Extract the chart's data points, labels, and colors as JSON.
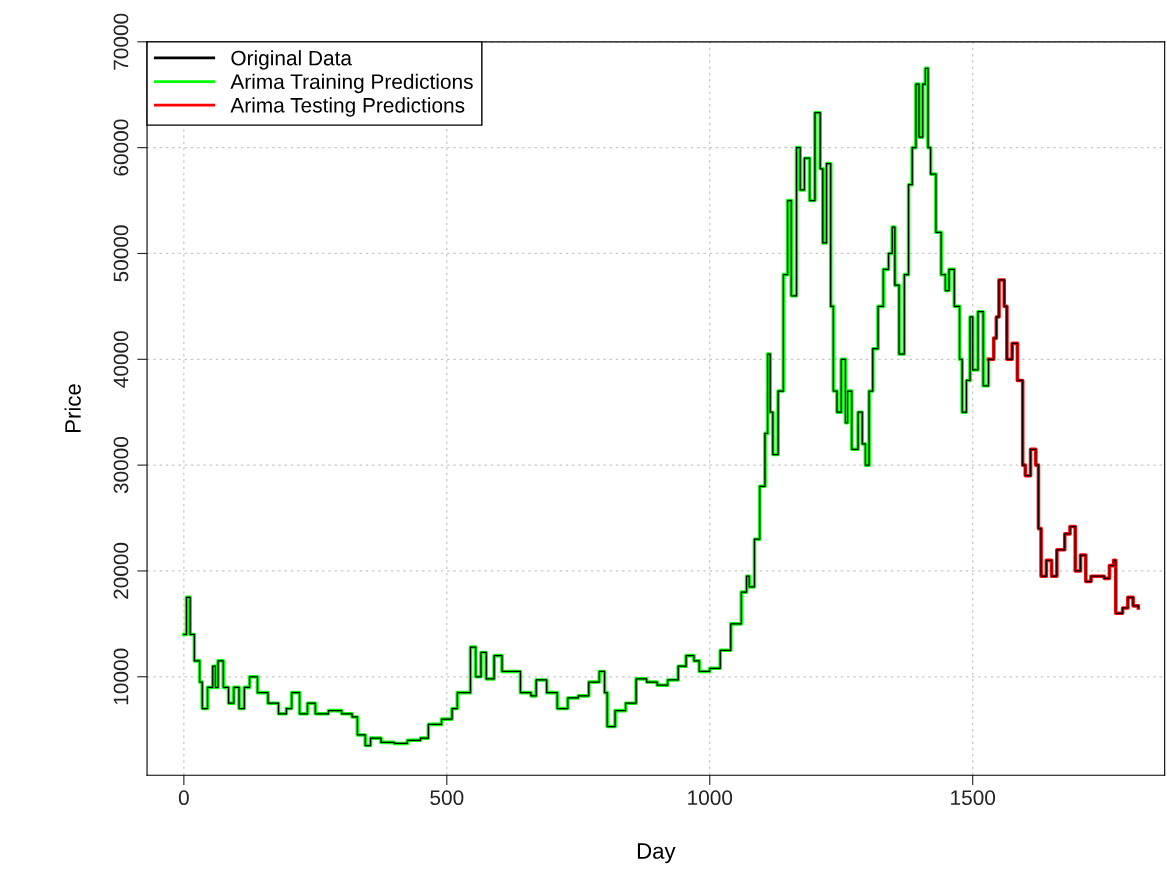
{
  "chart_data": {
    "type": "step",
    "xlabel": "Day",
    "ylabel": "Price",
    "xlim": [
      -70,
      1865
    ],
    "ylim": [
      700,
      70000
    ],
    "xticks": [
      0,
      500,
      1000,
      1500
    ],
    "yticks": [
      10000,
      20000,
      30000,
      40000,
      50000,
      60000,
      70000
    ],
    "grid": true,
    "legend": "top left",
    "line_style": "solid",
    "marker": "none",
    "series": [
      {
        "name": "Arima Training Predictions",
        "color": "#00ff00",
        "x": [
          0,
          5,
          12,
          20,
          30,
          35,
          45,
          55,
          60,
          65,
          75,
          85,
          95,
          105,
          115,
          125,
          140,
          160,
          180,
          195,
          205,
          220,
          235,
          250,
          275,
          300,
          320,
          330,
          345,
          355,
          375,
          400,
          425,
          450,
          465,
          490,
          510,
          520,
          535,
          545,
          555,
          565,
          575,
          590,
          605,
          625,
          640,
          660,
          670,
          690,
          710,
          730,
          750,
          770,
          790,
          800,
          805,
          820,
          840,
          860,
          880,
          900,
          920,
          940,
          955,
          970,
          980,
          1000,
          1010,
          1020,
          1040,
          1060,
          1070,
          1075,
          1085,
          1095,
          1105,
          1110,
          1115,
          1120,
          1130,
          1140,
          1148,
          1155,
          1165,
          1172,
          1180,
          1190,
          1200,
          1210,
          1215,
          1222,
          1230,
          1235,
          1242,
          1250,
          1258,
          1262,
          1270,
          1282,
          1290,
          1296,
          1303,
          1310,
          1320,
          1330,
          1340,
          1347,
          1352,
          1360,
          1370,
          1378,
          1385,
          1392,
          1398,
          1405,
          1410,
          1415,
          1420,
          1430,
          1440,
          1448,
          1455,
          1465,
          1475,
          1480,
          1488,
          1495,
          1500,
          1510,
          1520,
          1530
        ],
        "values": [
          14000,
          17500,
          14000,
          11500,
          9500,
          7000,
          9000,
          11000,
          9000,
          11500,
          9000,
          7500,
          9000,
          7000,
          9000,
          10000,
          8500,
          7500,
          6500,
          7000,
          8500,
          6500,
          7500,
          6500,
          6800,
          6500,
          6200,
          4500,
          3500,
          4200,
          3800,
          3700,
          4000,
          4200,
          5500,
          6000,
          7000,
          8500,
          8500,
          12800,
          10000,
          12300,
          9800,
          12000,
          10500,
          10500,
          8500,
          8200,
          9700,
          8500,
          7000,
          8000,
          8200,
          9500,
          10500,
          8500,
          5300,
          6800,
          7500,
          9800,
          9500,
          9200,
          9700,
          11000,
          12000,
          11500,
          10500,
          10800,
          10800,
          12500,
          15000,
          18000,
          19500,
          18500,
          23000,
          28000,
          33000,
          40500,
          35000,
          31000,
          37000,
          48000,
          55000,
          46000,
          60000,
          56000,
          59000,
          55000,
          63300,
          58000,
          51000,
          58500,
          45000,
          37000,
          35000,
          40000,
          34000,
          37000,
          31500,
          35000,
          32000,
          30000,
          37000,
          41000,
          45000,
          48500,
          50000,
          52500,
          47000,
          40500,
          48000,
          56500,
          60000,
          66000,
          61000,
          66000,
          67500,
          60000,
          57500,
          52000,
          48000,
          46500,
          48500,
          45000,
          40000,
          35000,
          38000,
          44000,
          39000,
          44500,
          37500,
          40000
        ]
      },
      {
        "name": "Arima Testing Predictions",
        "color": "#ff0000",
        "x": [
          1530,
          1540,
          1545,
          1550,
          1560,
          1565,
          1575,
          1585,
          1595,
          1600,
          1610,
          1620,
          1625,
          1630,
          1640,
          1650,
          1660,
          1675,
          1685,
          1695,
          1705,
          1715,
          1725,
          1735,
          1750,
          1760,
          1768,
          1772,
          1785,
          1795,
          1805,
          1815
        ],
        "values": [
          40000,
          42000,
          44000,
          47500,
          45000,
          40000,
          41500,
          38000,
          30000,
          29000,
          31500,
          30000,
          24000,
          19500,
          21000,
          19500,
          22000,
          23500,
          24200,
          20000,
          21500,
          19000,
          19500,
          19500,
          19300,
          20500,
          21000,
          16000,
          16500,
          17500,
          16700,
          16500
        ]
      },
      {
        "name": "Original Data",
        "color": "#000000",
        "x": [
          0,
          5,
          12,
          20,
          30,
          35,
          45,
          55,
          60,
          65,
          75,
          85,
          95,
          105,
          115,
          125,
          140,
          160,
          180,
          195,
          205,
          220,
          235,
          250,
          275,
          300,
          320,
          330,
          345,
          355,
          375,
          400,
          425,
          450,
          465,
          490,
          510,
          520,
          535,
          545,
          555,
          565,
          575,
          590,
          605,
          625,
          640,
          660,
          670,
          690,
          710,
          730,
          750,
          770,
          790,
          800,
          805,
          820,
          840,
          860,
          880,
          900,
          920,
          940,
          955,
          970,
          980,
          1000,
          1010,
          1020,
          1040,
          1060,
          1070,
          1075,
          1085,
          1095,
          1105,
          1110,
          1115,
          1120,
          1130,
          1140,
          1148,
          1155,
          1165,
          1172,
          1180,
          1190,
          1200,
          1210,
          1215,
          1222,
          1230,
          1235,
          1242,
          1250,
          1258,
          1262,
          1270,
          1282,
          1290,
          1296,
          1303,
          1310,
          1320,
          1330,
          1340,
          1347,
          1352,
          1360,
          1370,
          1378,
          1385,
          1392,
          1398,
          1405,
          1410,
          1415,
          1420,
          1430,
          1440,
          1448,
          1455,
          1465,
          1475,
          1480,
          1488,
          1495,
          1500,
          1510,
          1520,
          1530,
          1540,
          1545,
          1550,
          1560,
          1565,
          1575,
          1585,
          1595,
          1600,
          1610,
          1620,
          1625,
          1630,
          1640,
          1650,
          1660,
          1675,
          1685,
          1695,
          1705,
          1715,
          1725,
          1735,
          1750,
          1760,
          1768,
          1772,
          1785,
          1795,
          1805,
          1815
        ],
        "values": [
          14000,
          17500,
          14000,
          11500,
          9500,
          7000,
          9000,
          11000,
          9000,
          11500,
          9000,
          7500,
          9000,
          7000,
          9000,
          10000,
          8500,
          7500,
          6500,
          7000,
          8500,
          6500,
          7500,
          6500,
          6800,
          6500,
          6200,
          4500,
          3500,
          4200,
          3800,
          3700,
          4000,
          4200,
          5500,
          6000,
          7000,
          8500,
          8500,
          12800,
          10000,
          12300,
          9800,
          12000,
          10500,
          10500,
          8500,
          8200,
          9700,
          8500,
          7000,
          8000,
          8200,
          9500,
          10500,
          8500,
          5300,
          6800,
          7500,
          9800,
          9500,
          9200,
          9700,
          11000,
          12000,
          11500,
          10500,
          10800,
          10800,
          12500,
          15000,
          18000,
          19500,
          18500,
          23000,
          28000,
          33000,
          40500,
          35000,
          31000,
          37000,
          48000,
          55000,
          46000,
          60000,
          56000,
          59000,
          55000,
          63300,
          58000,
          51000,
          58500,
          45000,
          37000,
          35000,
          40000,
          34000,
          37000,
          31500,
          35000,
          32000,
          30000,
          37000,
          41000,
          45000,
          48500,
          50000,
          52500,
          47000,
          40500,
          48000,
          56500,
          60000,
          66000,
          61000,
          66000,
          67500,
          60000,
          57500,
          52000,
          48000,
          46500,
          48500,
          45000,
          40000,
          35000,
          38000,
          44000,
          39000,
          44500,
          37500,
          40000,
          42000,
          44000,
          47500,
          45000,
          40000,
          41500,
          38000,
          30000,
          29000,
          31500,
          30000,
          24000,
          19500,
          21000,
          19500,
          22000,
          23500,
          24200,
          20000,
          21500,
          19000,
          19500,
          19500,
          19300,
          20500,
          21000,
          16000,
          16500,
          17500,
          16700,
          16500
        ]
      }
    ]
  }
}
